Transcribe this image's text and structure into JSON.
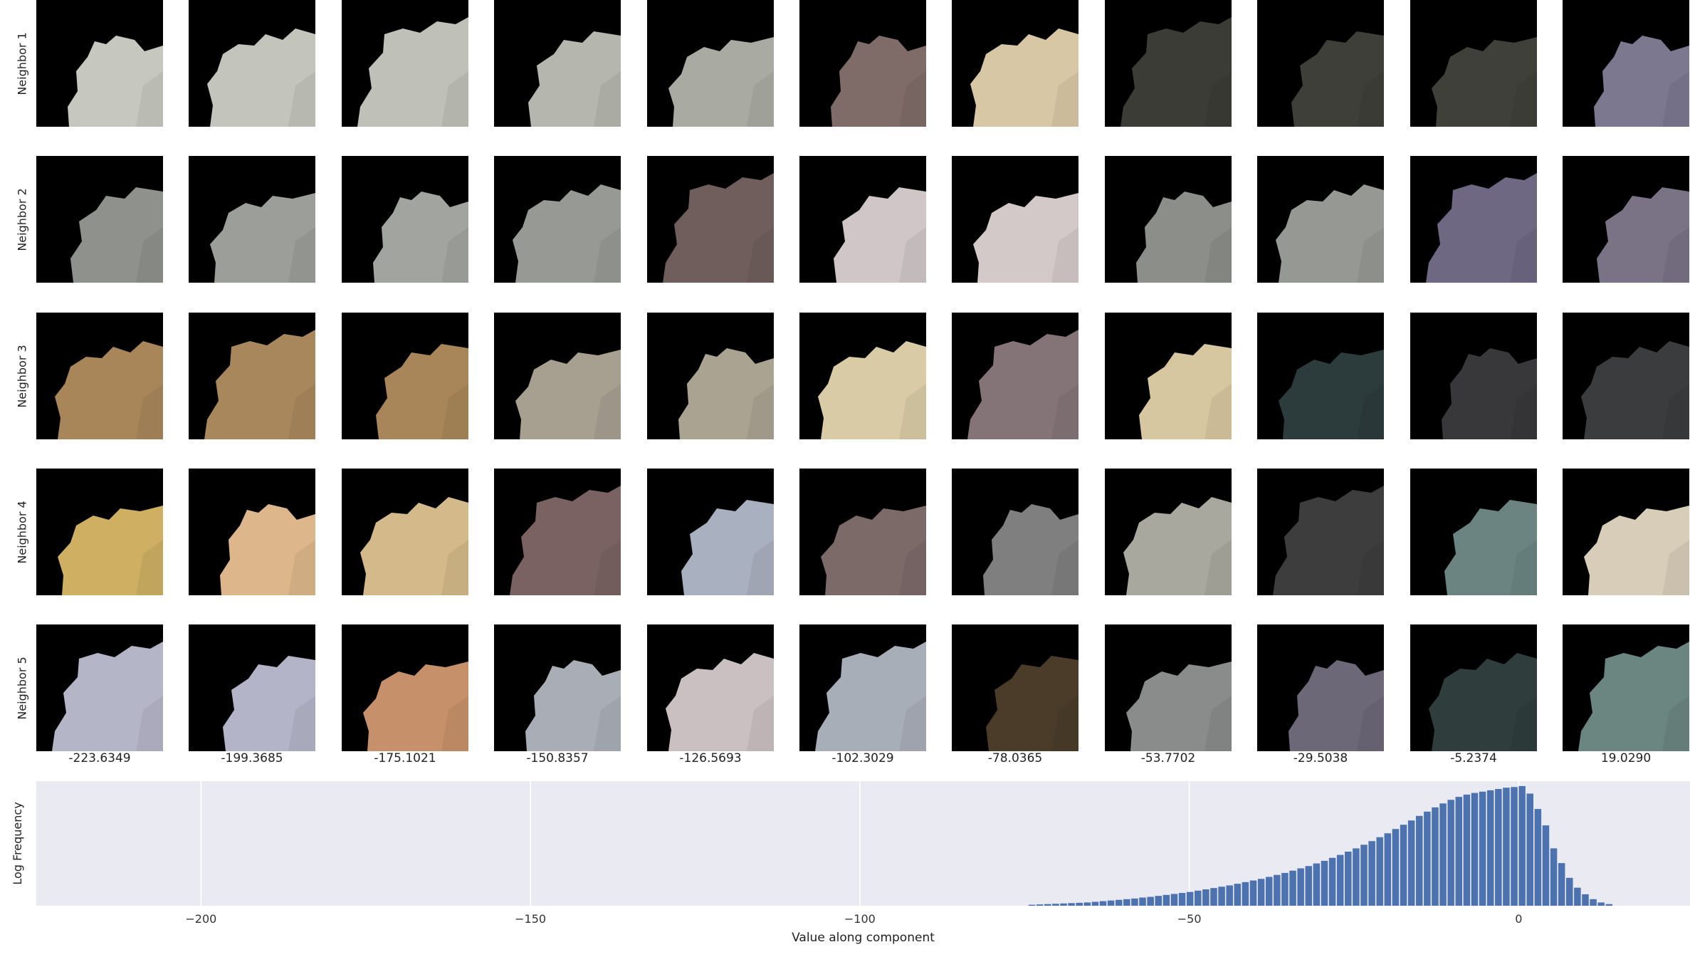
{
  "grid": {
    "row_labels": [
      "Neighbor 1",
      "Neighbor 2",
      "Neighbor 3",
      "Neighbor 4",
      "Neighbor 5"
    ],
    "column_values": [
      "-223.6349",
      "-199.3685",
      "-175.1021",
      "-150.8357",
      "-126.5693",
      "-102.3029",
      "-78.0365",
      "-53.7702",
      "-29.5038",
      "-5.2374",
      "19.0290"
    ],
    "tile_colors": [
      [
        "#c6c8c0",
        "#c3c5bd",
        "#bfc1b8",
        "#b5b7ae",
        "#a9aba2",
        "#7f6c69",
        "#d8c7a4",
        "#3b3c36",
        "#3e3f39",
        "#3f403a",
        "#7c7890"
      ],
      [
        "#8f918c",
        "#9c9e99",
        "#a2a49f",
        "#979a94",
        "#6f5e5c",
        "#d0c6c7",
        "#d3c9c8",
        "#8c8e8a",
        "#969893",
        "#6e6883",
        "#7a7285"
      ],
      [
        "#a8865a",
        "#a8875c",
        "#a88659",
        "#a7a091",
        "#aba392",
        "#d9cba5",
        "#847478",
        "#d7c7a0",
        "#2c3b3c",
        "#38383a",
        "#3b3c3e"
      ],
      [
        "#cfb062",
        "#ddb78b",
        "#d4b98a",
        "#7a6262",
        "#a9b0bf",
        "#7c6a69",
        "#7f7f80",
        "#a8a89e",
        "#3d3d3d",
        "#6b8482",
        "#d7cdb8"
      ],
      [
        "#b5b5c8",
        "#b3b4c7",
        "#c6916a",
        "#a9aeb6",
        "#cac0c2",
        "#a8aeb8",
        "#4b3c2a",
        "#8a8c8c",
        "#6c6878",
        "#2f3d3d",
        "#6b8580"
      ]
    ]
  },
  "chart_data": {
    "type": "bar",
    "xlabel": "Value along component",
    "ylabel": "Log Frequency",
    "xlim": [
      -225,
      26
    ],
    "ylim": [
      0,
      3.8
    ],
    "xticks": [
      -200,
      -150,
      -100,
      -50,
      0
    ],
    "xtick_labels": [
      "−200",
      "−150",
      "−100",
      "−50",
      "0"
    ],
    "bin_width": 1.2,
    "x": [
      -74.4,
      -73.2,
      -72.0,
      -70.8,
      -69.6,
      -68.4,
      -67.2,
      -66.0,
      -64.8,
      -63.6,
      -62.4,
      -61.2,
      -60.0,
      -58.8,
      -57.6,
      -56.4,
      -55.2,
      -54.0,
      -52.8,
      -51.6,
      -50.4,
      -49.2,
      -48.0,
      -46.8,
      -45.6,
      -44.4,
      -43.2,
      -42.0,
      -40.8,
      -39.6,
      -38.4,
      -37.2,
      -36.0,
      -34.8,
      -33.6,
      -32.4,
      -31.2,
      -30.0,
      -28.8,
      -27.6,
      -26.4,
      -25.2,
      -24.0,
      -22.8,
      -21.6,
      -20.4,
      -19.2,
      -18.0,
      -16.8,
      -15.6,
      -14.4,
      -13.2,
      -12.0,
      -10.8,
      -9.6,
      -8.4,
      -7.2,
      -6.0,
      -4.8,
      -3.6,
      -2.4,
      -1.2,
      0.0,
      1.2,
      2.4,
      3.6,
      4.8,
      6.0,
      7.2,
      8.4,
      9.6,
      10.8,
      12.0,
      13.2
    ],
    "values": [
      0.03,
      0.04,
      0.05,
      0.06,
      0.07,
      0.08,
      0.09,
      0.1,
      0.12,
      0.14,
      0.16,
      0.18,
      0.2,
      0.22,
      0.25,
      0.27,
      0.3,
      0.33,
      0.36,
      0.39,
      0.42,
      0.46,
      0.5,
      0.54,
      0.58,
      0.62,
      0.67,
      0.72,
      0.77,
      0.82,
      0.88,
      0.94,
      1.0,
      1.07,
      1.14,
      1.21,
      1.29,
      1.37,
      1.46,
      1.55,
      1.65,
      1.75,
      1.86,
      1.97,
      2.09,
      2.21,
      2.34,
      2.47,
      2.6,
      2.74,
      2.87,
      3.0,
      3.12,
      3.23,
      3.32,
      3.39,
      3.44,
      3.48,
      3.52,
      3.56,
      3.6,
      3.62,
      3.65,
      3.42,
      2.95,
      2.45,
      1.75,
      1.3,
      0.85,
      0.55,
      0.35,
      0.2,
      0.1,
      0.05
    ]
  }
}
